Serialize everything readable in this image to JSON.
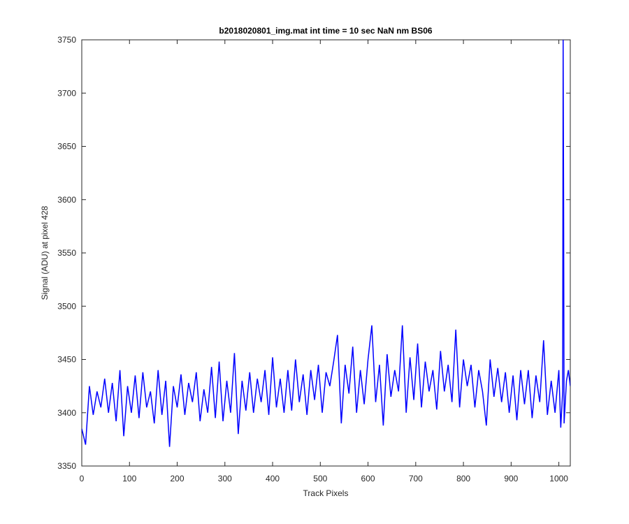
{
  "chart_data": {
    "type": "line",
    "title": "b2018020801_img.mat int time = 10 sec  NaN nm BS06",
    "x_label": "Track Pixels",
    "y_label": "Signal (ADU) at pixel 428",
    "xlim": [
      0,
      1024
    ],
    "ylim": [
      3350,
      3750
    ],
    "xticks": [
      0,
      100,
      200,
      300,
      400,
      500,
      600,
      700,
      800,
      900,
      1000
    ],
    "yticks": [
      3350,
      3400,
      3450,
      3500,
      3550,
      3600,
      3650,
      3700,
      3750
    ],
    "series": [
      {
        "color": "#0000ff",
        "x": [
          0,
          8,
          16,
          24,
          32,
          40,
          48,
          56,
          64,
          72,
          80,
          88,
          96,
          104,
          112,
          120,
          128,
          136,
          144,
          152,
          160,
          168,
          176,
          184,
          192,
          200,
          208,
          216,
          224,
          232,
          240,
          248,
          256,
          264,
          272,
          280,
          288,
          296,
          304,
          312,
          320,
          328,
          336,
          344,
          352,
          360,
          368,
          376,
          384,
          392,
          400,
          408,
          416,
          424,
          432,
          440,
          448,
          456,
          464,
          472,
          480,
          488,
          496,
          504,
          512,
          520,
          528,
          536,
          544,
          552,
          560,
          568,
          576,
          584,
          592,
          600,
          608,
          616,
          624,
          632,
          640,
          648,
          656,
          664,
          672,
          680,
          688,
          696,
          704,
          712,
          720,
          728,
          736,
          744,
          752,
          760,
          768,
          776,
          784,
          792,
          800,
          808,
          816,
          824,
          832,
          840,
          848,
          856,
          864,
          872,
          880,
          888,
          896,
          904,
          912,
          920,
          928,
          936,
          944,
          952,
          960,
          968,
          976,
          984,
          992,
          1000,
          1004,
          1008,
          1009,
          1010,
          1011,
          1016,
          1020,
          1024
        ],
        "values": [
          3385,
          3370,
          3425,
          3398,
          3420,
          3405,
          3432,
          3400,
          3428,
          3392,
          3440,
          3378,
          3425,
          3400,
          3435,
          3395,
          3438,
          3405,
          3420,
          3390,
          3440,
          3398,
          3430,
          3368,
          3425,
          3405,
          3436,
          3398,
          3428,
          3410,
          3438,
          3392,
          3422,
          3400,
          3443,
          3395,
          3448,
          3392,
          3430,
          3400,
          3456,
          3380,
          3430,
          3402,
          3438,
          3400,
          3432,
          3410,
          3440,
          3398,
          3452,
          3405,
          3432,
          3400,
          3440,
          3402,
          3450,
          3410,
          3436,
          3398,
          3440,
          3412,
          3445,
          3400,
          3438,
          3425,
          3448,
          3473,
          3390,
          3445,
          3418,
          3462,
          3400,
          3440,
          3408,
          3450,
          3482,
          3410,
          3445,
          3388,
          3455,
          3415,
          3440,
          3420,
          3482,
          3400,
          3452,
          3412,
          3465,
          3405,
          3448,
          3420,
          3440,
          3403,
          3458,
          3420,
          3445,
          3410,
          3478,
          3405,
          3450,
          3425,
          3445,
          3405,
          3440,
          3420,
          3388,
          3450,
          3415,
          3442,
          3410,
          3438,
          3400,
          3435,
          3393,
          3440,
          3408,
          3440,
          3395,
          3435,
          3410,
          3468,
          3398,
          3430,
          3400,
          3440,
          3386,
          3420,
          3750,
          3600,
          3390,
          3430,
          3440,
          3425
        ]
      }
    ]
  }
}
